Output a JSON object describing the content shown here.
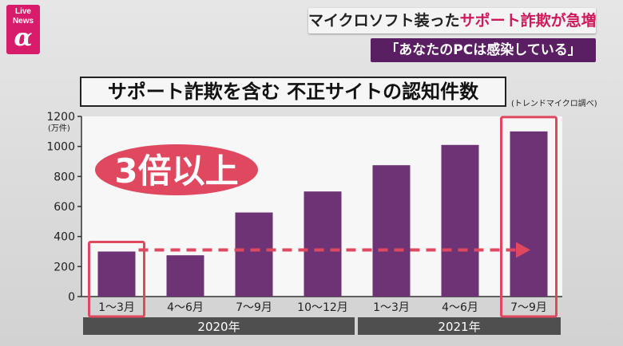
{
  "logo": {
    "line1": "Live",
    "line2": "News",
    "symbol": "α"
  },
  "headline": {
    "part1": "マイクロソフト装った",
    "part2": "サポート詐欺が急増"
  },
  "subheadline": "「あなたのPCは感染している」",
  "chart_data": {
    "type": "bar",
    "title": "サポート詐欺を含む 不正サイトの認知件数",
    "source": "(トレンドマイクロ調べ)",
    "ylabel": "(万件)",
    "ylim": [
      0,
      1200
    ],
    "yticks": [
      0,
      200,
      400,
      600,
      800,
      1000,
      1200
    ],
    "categories": [
      "1～3月",
      "4～6月",
      "7～9月",
      "10～12月",
      "1～3月",
      "4～6月",
      "7～9月"
    ],
    "values": [
      300,
      275,
      560,
      700,
      875,
      1010,
      1100
    ],
    "groups": [
      {
        "label": "2020年",
        "count": 4
      },
      {
        "label": "2021年",
        "count": 3
      }
    ],
    "annotation": "3倍以上",
    "highlight_indices": [
      0,
      6
    ],
    "colors": {
      "bar": "#6e3375",
      "highlight": "#e0485f",
      "arrow": "#e0485f",
      "group_bar": "#4f4f4f"
    },
    "grid": false
  }
}
